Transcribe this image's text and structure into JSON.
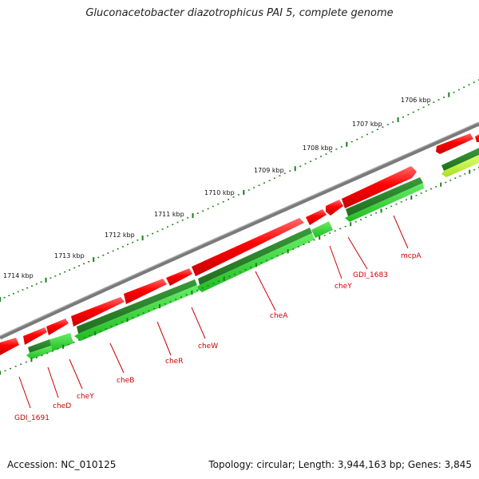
{
  "title": "Gluconacetobacter diazotrophicus PAI 5, complete genome",
  "footer": {
    "accession": "Accession: NC_010125",
    "topology": "Topology: circular; Length: 3,944,163 bp; Genes: 3,845"
  },
  "kbp_labels": [
    "1706 kbp",
    "1707 kbp",
    "1708 kbp",
    "1709 kbp",
    "1710 kbp",
    "1711 kbp",
    "1712 kbp",
    "1713 kbp",
    "1714 kbp"
  ],
  "gene_labels": [
    "mcpA",
    "GDI_1683",
    "cheY",
    "cheA",
    "cheW",
    "cheR",
    "cheB",
    "cheY",
    "cheD",
    "GDI_1691"
  ],
  "colors": {
    "forward_gene": "#ff0000",
    "reverse_gene_dark": "#2e8b2e",
    "reverse_gene_light": "#33dd33",
    "reverse_gene_pale": "#bff03a",
    "backbone": "#808080",
    "tick": "#1a7f1a",
    "label": "#cc0000"
  }
}
